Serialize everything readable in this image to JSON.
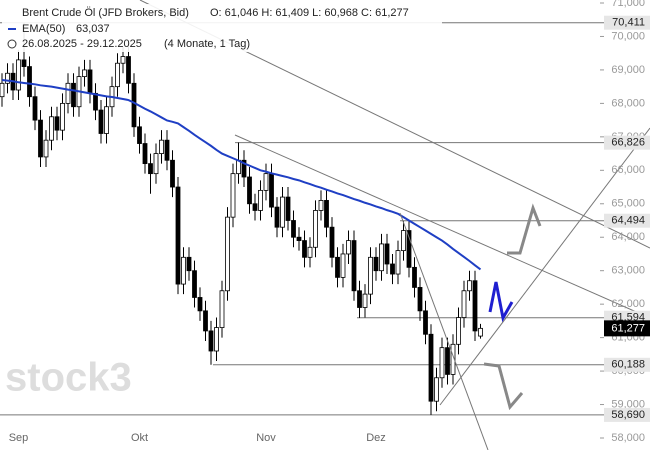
{
  "chart_data": {
    "type": "candlestick",
    "title": "Brent Crude Öl (JFD Brokers, Bid)",
    "ohlc_text": "O: 61,046  H: 61,409  L: 60,968  C: 61,277",
    "date_range": "26.08.2025 - 29.12.2025",
    "period": "(4 Monate, 1 Tag)",
    "watermark": "stock3",
    "categories": [
      null,
      null,
      null,
      "Sep",
      null,
      null,
      null,
      null,
      null,
      null,
      null,
      null,
      null,
      null,
      null,
      null,
      null,
      null,
      null,
      null,
      null,
      null,
      null,
      null,
      null,
      "Okt",
      null,
      null,
      null,
      null,
      null,
      null,
      null,
      null,
      null,
      null,
      null,
      null,
      null,
      null,
      null,
      null,
      null,
      null,
      null,
      null,
      null,
      null,
      "Nov",
      null,
      null,
      null,
      null,
      null,
      null,
      null,
      null,
      null,
      null,
      null,
      null,
      null,
      null,
      null,
      null,
      null,
      null,
      null,
      "Dez",
      null,
      null,
      null,
      null,
      null,
      null,
      null,
      null,
      null,
      null,
      null,
      null,
      null,
      null,
      null,
      null,
      null,
      null,
      null
    ],
    "candles": [
      [
        68.2,
        68.9,
        67.9,
        68.6
      ],
      [
        68.6,
        69.2,
        68.3,
        68.9
      ],
      [
        68.9,
        69.2,
        68.1,
        68.4
      ],
      [
        68.4,
        69.6,
        68.1,
        69.3
      ],
      [
        69.3,
        70.4,
        68.8,
        69.1
      ],
      [
        69.1,
        69.4,
        67.9,
        68.2
      ],
      [
        68.2,
        68.5,
        67.2,
        67.5
      ],
      [
        67.5,
        67.8,
        66.1,
        66.4
      ],
      [
        66.4,
        67.2,
        66.1,
        66.9
      ],
      [
        66.9,
        67.9,
        66.6,
        67.6
      ],
      [
        67.6,
        67.9,
        66.9,
        67.2
      ],
      [
        67.2,
        68.3,
        66.9,
        68.0
      ],
      [
        68.0,
        68.9,
        67.7,
        68.6
      ],
      [
        68.6,
        68.9,
        67.6,
        67.9
      ],
      [
        67.9,
        69.1,
        67.6,
        68.8
      ],
      [
        68.8,
        69.3,
        68.5,
        69.0
      ],
      [
        69.0,
        69.3,
        68.0,
        68.3
      ],
      [
        68.3,
        68.6,
        67.5,
        67.8
      ],
      [
        67.8,
        68.1,
        66.8,
        67.1
      ],
      [
        67.1,
        68.2,
        66.8,
        67.9
      ],
      [
        67.9,
        68.8,
        67.6,
        68.5
      ],
      [
        68.5,
        69.5,
        68.2,
        69.2
      ],
      [
        69.2,
        69.7,
        68.9,
        69.4
      ],
      [
        69.4,
        69.7,
        68.3,
        68.6
      ],
      [
        68.6,
        68.9,
        67.0,
        67.3
      ],
      [
        67.3,
        67.6,
        66.5,
        66.8
      ],
      [
        66.8,
        67.1,
        65.9,
        66.2
      ],
      [
        66.2,
        66.5,
        65.3,
        65.9
      ],
      [
        65.9,
        66.8,
        65.6,
        66.5
      ],
      [
        66.5,
        67.2,
        66.2,
        66.9
      ],
      [
        66.9,
        67.2,
        66.0,
        66.3
      ],
      [
        66.3,
        66.6,
        65.2,
        65.5
      ],
      [
        65.5,
        65.8,
        62.3,
        62.6
      ],
      [
        62.6,
        63.7,
        62.3,
        63.4
      ],
      [
        63.4,
        63.7,
        62.7,
        63.0
      ],
      [
        63.0,
        63.3,
        61.9,
        62.2
      ],
      [
        62.2,
        62.5,
        61.5,
        61.8
      ],
      [
        61.8,
        62.1,
        60.9,
        61.2
      ],
      [
        61.2,
        61.5,
        60.19,
        60.6
      ],
      [
        60.6,
        61.6,
        60.3,
        61.3
      ],
      [
        61.3,
        62.7,
        61.0,
        62.4
      ],
      [
        62.4,
        64.9,
        62.1,
        64.6
      ],
      [
        64.6,
        66.2,
        64.3,
        65.9
      ],
      [
        65.9,
        66.83,
        65.6,
        66.3
      ],
      [
        66.3,
        66.6,
        65.5,
        65.8
      ],
      [
        65.8,
        66.1,
        64.7,
        65.0
      ],
      [
        65.0,
        65.3,
        64.5,
        64.8
      ],
      [
        64.8,
        65.7,
        64.5,
        65.4
      ],
      [
        65.4,
        66.2,
        65.1,
        65.9
      ],
      [
        65.9,
        66.2,
        64.6,
        64.9
      ],
      [
        64.9,
        65.2,
        64.0,
        64.3
      ],
      [
        64.3,
        65.5,
        64.0,
        65.2
      ],
      [
        65.2,
        65.5,
        64.2,
        64.5
      ],
      [
        64.5,
        64.8,
        63.7,
        64.0
      ],
      [
        64.0,
        64.3,
        63.6,
        63.9
      ],
      [
        63.9,
        64.2,
        63.1,
        63.4
      ],
      [
        63.4,
        64.0,
        63.1,
        63.7
      ],
      [
        63.7,
        65.1,
        63.4,
        64.8
      ],
      [
        64.8,
        65.4,
        64.5,
        65.1
      ],
      [
        65.1,
        65.4,
        64.0,
        64.3
      ],
      [
        64.3,
        64.6,
        63.1,
        63.4
      ],
      [
        63.4,
        63.7,
        62.5,
        62.8
      ],
      [
        62.8,
        63.8,
        62.5,
        63.5
      ],
      [
        63.5,
        64.2,
        63.2,
        63.9
      ],
      [
        63.9,
        64.2,
        62.1,
        62.4
      ],
      [
        62.4,
        62.7,
        61.59,
        61.9
      ],
      [
        61.9,
        62.6,
        61.6,
        62.3
      ],
      [
        62.3,
        63.7,
        62.0,
        63.4
      ],
      [
        63.4,
        63.7,
        62.7,
        63.0
      ],
      [
        63.0,
        64.1,
        62.7,
        63.8
      ],
      [
        63.8,
        64.1,
        62.9,
        63.2
      ],
      [
        63.2,
        63.5,
        62.6,
        62.9
      ],
      [
        62.9,
        63.9,
        62.6,
        63.6
      ],
      [
        63.6,
        64.49,
        63.3,
        64.2
      ],
      [
        64.2,
        64.5,
        62.8,
        63.1
      ],
      [
        63.1,
        63.4,
        62.2,
        62.5
      ],
      [
        62.5,
        62.8,
        61.5,
        61.8
      ],
      [
        61.8,
        62.1,
        60.8,
        61.1
      ],
      [
        61.1,
        61.4,
        58.69,
        59.1
      ],
      [
        59.1,
        60.1,
        58.8,
        59.8
      ],
      [
        59.8,
        61.0,
        59.5,
        60.7
      ],
      [
        60.7,
        61.0,
        59.6,
        59.9
      ],
      [
        59.9,
        61.1,
        59.6,
        60.8
      ],
      [
        60.8,
        61.9,
        60.5,
        61.6
      ],
      [
        61.6,
        62.7,
        61.3,
        62.4
      ],
      [
        62.4,
        63.0,
        62.1,
        62.7
      ],
      [
        62.7,
        63.0,
        60.9,
        61.2
      ],
      [
        61.046,
        61.409,
        60.968,
        61.277
      ]
    ],
    "ema": {
      "name": "EMA(50)",
      "value_label": "63,037",
      "color": "#1f3fc4",
      "values": [
        68.7,
        68.68,
        68.66,
        68.63,
        68.61,
        68.59,
        68.57,
        68.54,
        68.52,
        68.5,
        68.47,
        68.44,
        68.41,
        68.39,
        68.36,
        68.33,
        68.3,
        68.27,
        68.24,
        68.21,
        68.19,
        68.16,
        68.13,
        68.1,
        68.02,
        67.93,
        67.84,
        67.76,
        67.67,
        67.58,
        67.49,
        67.45,
        67.4,
        67.29,
        67.18,
        67.06,
        66.95,
        66.84,
        66.73,
        66.61,
        66.5,
        66.43,
        66.36,
        66.29,
        66.21,
        66.14,
        66.07,
        66.0,
        65.96,
        65.91,
        65.87,
        65.83,
        65.79,
        65.74,
        65.7,
        65.64,
        65.59,
        65.53,
        65.48,
        65.42,
        65.37,
        65.31,
        65.26,
        65.2,
        65.14,
        65.09,
        65.03,
        64.98,
        64.92,
        64.87,
        64.81,
        64.76,
        64.7,
        64.6,
        64.5,
        64.4,
        64.3,
        64.2,
        64.1,
        64.0,
        63.9,
        63.78,
        63.65,
        63.53,
        63.41,
        63.29,
        63.16,
        63.037
      ]
    },
    "levels": [
      {
        "value": 70.411,
        "label": "70,411"
      },
      {
        "value": 66.826,
        "label": "66,826"
      },
      {
        "value": 64.494,
        "label": "64,494"
      },
      {
        "value": 61.594,
        "label": "61,594"
      },
      {
        "value": 60.188,
        "label": "60,188"
      },
      {
        "value": 58.69,
        "label": "58,690"
      }
    ],
    "last_price": {
      "value": 61.277,
      "label": "61,277"
    },
    "ylim": [
      58,
      71
    ],
    "yticks": [
      {
        "value": 58,
        "label": "58,000"
      },
      {
        "value": 59,
        "label": "59,000"
      },
      {
        "value": 60,
        "label": "60,000"
      },
      {
        "value": 61,
        "label": "61,000"
      },
      {
        "value": 62,
        "label": "62,000"
      },
      {
        "value": 63,
        "label": "63,000"
      },
      {
        "value": 64,
        "label": "64,000"
      },
      {
        "value": 65,
        "label": "65,000"
      },
      {
        "value": 66,
        "label": "66,000"
      },
      {
        "value": 67,
        "label": "67,000"
      },
      {
        "value": 68,
        "label": "68,000"
      },
      {
        "value": 69,
        "label": "69,000"
      },
      {
        "value": 70,
        "label": "70,000"
      },
      {
        "value": 71,
        "label": "71,000"
      }
    ]
  }
}
